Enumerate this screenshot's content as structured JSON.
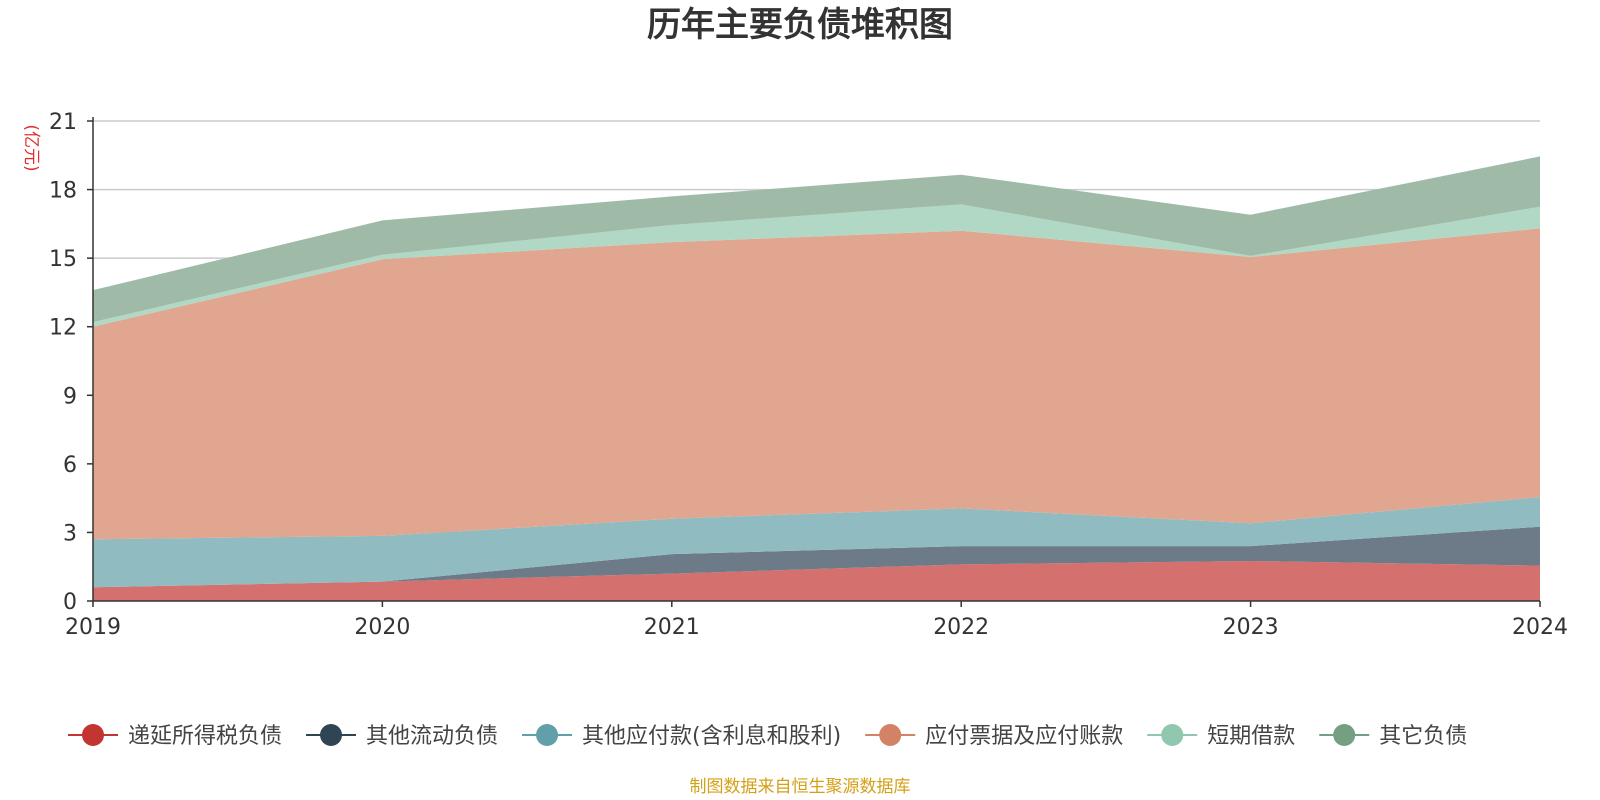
{
  "chart_data": {
    "type": "area",
    "stacked": true,
    "title": "历年主要负债堆积图",
    "unit_label": "(亿元)",
    "x": [
      "2019",
      "2020",
      "2021",
      "2022",
      "2023",
      "2024"
    ],
    "ylim": [
      0,
      21
    ],
    "yticks": [
      "0",
      "3",
      "6",
      "9",
      "12",
      "15",
      "18",
      "21"
    ],
    "grid": true,
    "legend_position": "bottom",
    "series": [
      {
        "name": "递延所得税负债",
        "color": "#c23531",
        "fill": "#d4706d",
        "values": [
          0.6,
          0.85,
          1.2,
          1.6,
          1.75,
          1.55
        ]
      },
      {
        "name": "其他流动负债",
        "color": "#2f4554",
        "fill": "#6c7b87",
        "values": [
          0.0,
          0.0,
          0.85,
          0.8,
          0.65,
          1.7
        ]
      },
      {
        "name": "其他应付款(含利息和股利)",
        "color": "#61a0a8",
        "fill": "#90bcc1",
        "values": [
          2.1,
          2.0,
          1.55,
          1.65,
          1.0,
          1.3
        ]
      },
      {
        "name": "应付票据及应付账款",
        "color": "#d48265",
        "fill": "#e0a690",
        "values": [
          9.3,
          12.1,
          12.1,
          12.15,
          11.65,
          11.75
        ]
      },
      {
        "name": "短期借款",
        "color": "#91c7ae",
        "fill": "#b0d8c5",
        "values": [
          0.2,
          0.2,
          0.75,
          1.15,
          0.05,
          0.95
        ]
      },
      {
        "name": "其它负债",
        "color": "#749f83",
        "fill": "#9fbba8",
        "values": [
          1.4,
          1.5,
          1.25,
          1.3,
          1.8,
          2.2
        ]
      }
    ]
  },
  "footer": {
    "source": "制图数据来自恒生聚源数据库",
    "source_color": "#d4a017"
  },
  "colors": {
    "unit": "#e03030",
    "axis": "#333333",
    "grid": "#cccccc"
  }
}
